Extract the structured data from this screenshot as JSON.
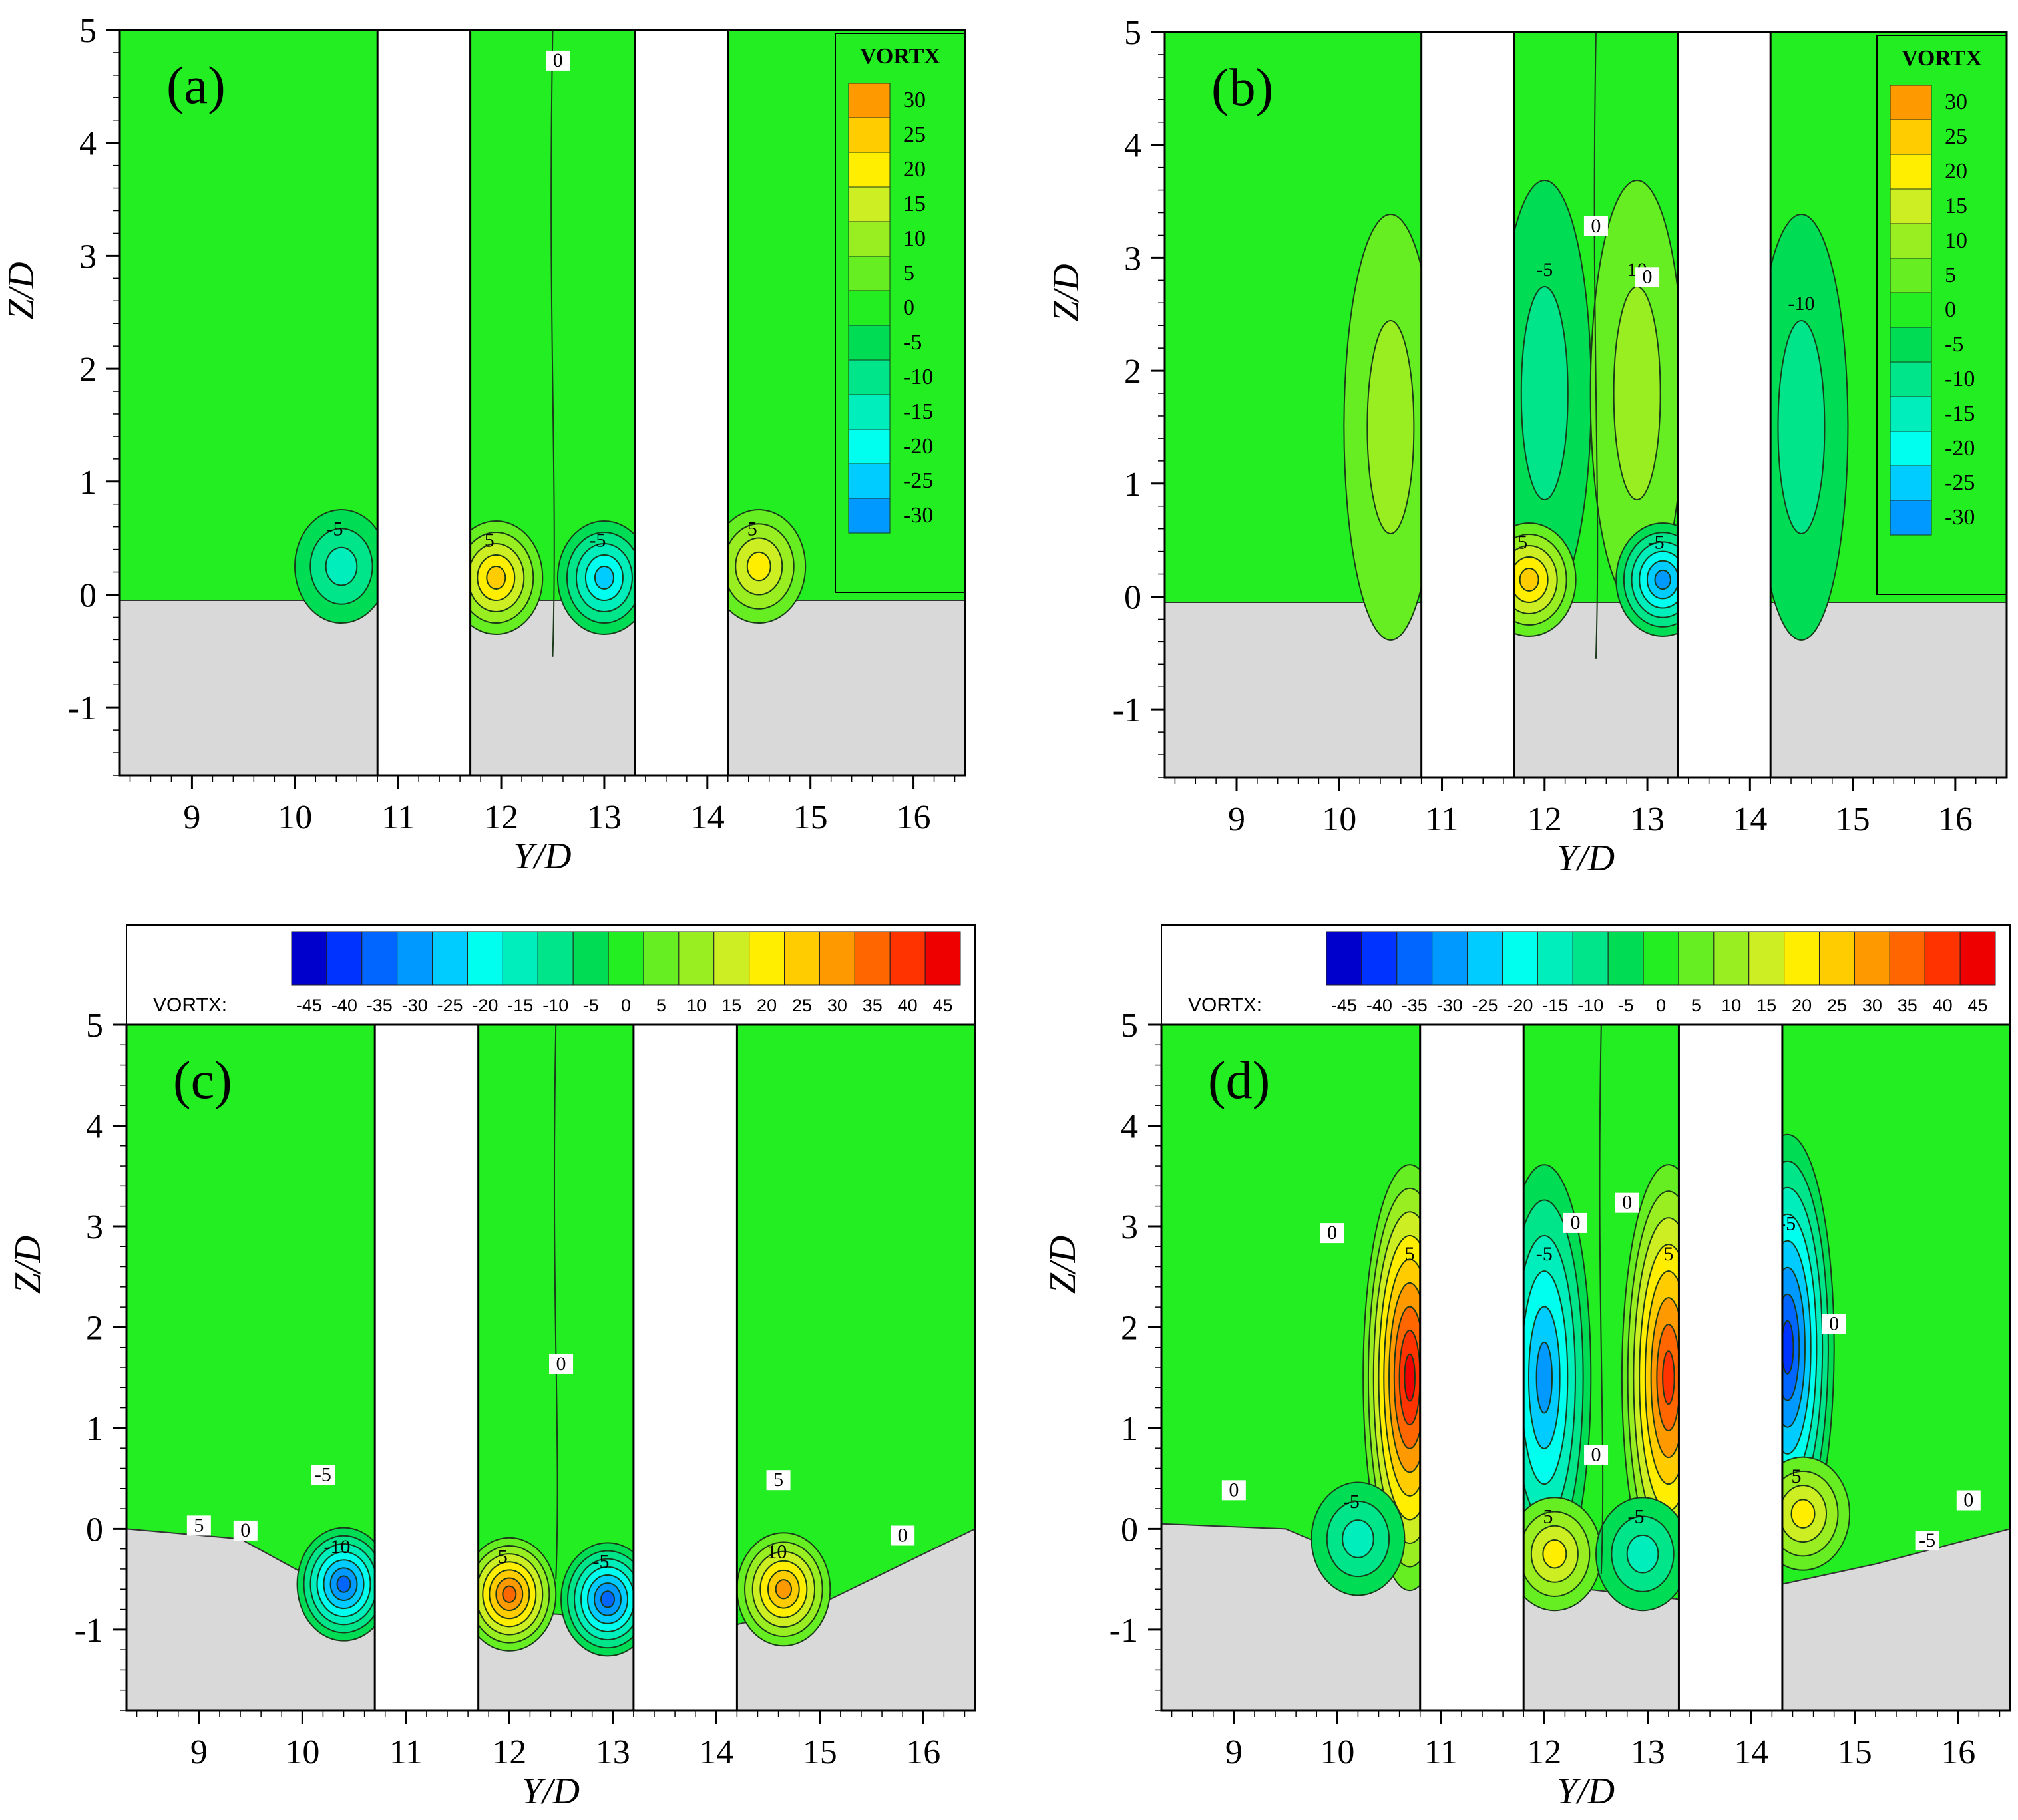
{
  "figure": {
    "colors": {
      "field": "#22ee22",
      "bed": "#d9d9d9",
      "pile": "#ffffff",
      "contour": "#1a3a1a"
    },
    "colormap": [
      "#0000cc",
      "#0033ff",
      "#0066ff",
      "#0099ff",
      "#00ccff",
      "#00ffee",
      "#00eebb",
      "#00e48a",
      "#00dd55",
      "#22ee22",
      "#66ee22",
      "#99ee22",
      "#ccee22",
      "#ffee00",
      "#ffcc00",
      "#ff9900",
      "#ff6600",
      "#ff3300",
      "#ee0000"
    ]
  },
  "chart_data": [
    {
      "panel_label": "(a)",
      "type": "contour",
      "xlabel": "Y/D",
      "ylabel": "Z/D",
      "xlim": [
        8.3,
        16.5
      ],
      "ylim": [
        -1.6,
        5.0
      ],
      "xticks": [
        "9",
        "10",
        "11",
        "12",
        "13",
        "14",
        "15",
        "16"
      ],
      "yticks": [
        "-1",
        "0",
        "1",
        "2",
        "3",
        "4",
        "5"
      ],
      "piles": [
        [
          10.8,
          11.7
        ],
        [
          13.3,
          14.2
        ]
      ],
      "bed_profile": [
        [
          8.3,
          -0.05
        ],
        [
          16.5,
          -0.05
        ]
      ],
      "legend": {
        "title": "VORTX",
        "orientation": "vertical",
        "levels": [
          "30",
          "25",
          "20",
          "15",
          "10",
          "5",
          "0",
          "-5",
          "-10",
          "-15",
          "-20",
          "-25",
          "-30"
        ]
      },
      "blobs": [
        {
          "y": 10.45,
          "z": 0.25,
          "value": -15,
          "label": "-5"
        },
        {
          "y": 11.95,
          "z": 0.15,
          "value": 25,
          "label": "5"
        },
        {
          "y": 13.0,
          "z": 0.15,
          "value": -25,
          "label": "-5"
        },
        {
          "y": 14.5,
          "z": 0.25,
          "value": 18,
          "label": "5"
        }
      ],
      "contour_labels": [
        {
          "text": "0",
          "y": 12.55,
          "z": 4.7
        }
      ]
    },
    {
      "panel_label": "(b)",
      "type": "contour",
      "xlabel": "Y/D",
      "ylabel": "Z/D",
      "xlim": [
        8.3,
        16.5
      ],
      "ylim": [
        -1.6,
        5.0
      ],
      "xticks": [
        "9",
        "10",
        "11",
        "12",
        "13",
        "14",
        "15",
        "16"
      ],
      "yticks": [
        "-1",
        "0",
        "1",
        "2",
        "3",
        "4",
        "5"
      ],
      "piles": [
        [
          10.8,
          11.7
        ],
        [
          13.3,
          14.2
        ]
      ],
      "bed_profile": [
        [
          8.3,
          -0.05
        ],
        [
          16.5,
          -0.05
        ]
      ],
      "legend": {
        "title": "VORTX",
        "orientation": "vertical",
        "levels": [
          "30",
          "25",
          "20",
          "15",
          "10",
          "5",
          "0",
          "-5",
          "-10",
          "-15",
          "-20",
          "-25",
          "-30"
        ]
      },
      "blobs": [
        {
          "y": 10.5,
          "z": 1.5,
          "value": 8,
          "label": ""
        },
        {
          "y": 12.0,
          "z": 1.8,
          "value": -4,
          "label": "-5"
        },
        {
          "y": 12.9,
          "z": 1.8,
          "value": 8,
          "label": "10"
        },
        {
          "y": 14.5,
          "z": 1.5,
          "value": -6,
          "label": "-10"
        },
        {
          "y": 11.85,
          "z": 0.15,
          "value": 25,
          "label": "5"
        },
        {
          "y": 13.15,
          "z": 0.15,
          "value": -30,
          "label": "-5"
        }
      ],
      "contour_labels": [
        {
          "text": "0",
          "y": 12.5,
          "z": 3.25
        },
        {
          "text": "0",
          "y": 13.0,
          "z": 2.8
        }
      ]
    },
    {
      "panel_label": "(c)",
      "type": "contour",
      "xlabel": "Y/D",
      "ylabel": "Z/D",
      "xlim": [
        8.3,
        16.5
      ],
      "ylim": [
        -1.8,
        5.0
      ],
      "xticks": [
        "9",
        "10",
        "11",
        "12",
        "13",
        "14",
        "15",
        "16"
      ],
      "yticks": [
        "-1",
        "0",
        "1",
        "2",
        "3",
        "4",
        "5"
      ],
      "piles": [
        [
          10.7,
          11.7
        ],
        [
          13.2,
          14.2
        ]
      ],
      "bed_profile": [
        [
          8.3,
          0.0
        ],
        [
          9.4,
          -0.1
        ],
        [
          10.2,
          -0.55
        ],
        [
          10.7,
          -0.75
        ],
        [
          11.7,
          -0.8
        ],
        [
          12.5,
          -0.85
        ],
        [
          13.2,
          -0.95
        ],
        [
          14.2,
          -0.95
        ],
        [
          15.0,
          -0.75
        ],
        [
          16.5,
          0.0
        ]
      ],
      "legend": {
        "title": "VORTX:",
        "orientation": "horizontal",
        "levels": [
          "-45",
          "-40",
          "-35",
          "-30",
          "-25",
          "-20",
          "-15",
          "-10",
          "-5",
          "0",
          "5",
          "10",
          "15",
          "20",
          "25",
          "30",
          "35",
          "40",
          "45"
        ]
      },
      "blobs": [
        {
          "y": 10.4,
          "z": -0.55,
          "value": -35,
          "label": "-10"
        },
        {
          "y": 12.0,
          "z": -0.65,
          "value": 35,
          "label": "5"
        },
        {
          "y": 12.95,
          "z": -0.7,
          "value": -35,
          "label": "-5"
        },
        {
          "y": 14.65,
          "z": -0.6,
          "value": 30,
          "label": "10"
        }
      ],
      "contour_labels": [
        {
          "text": "0",
          "y": 12.5,
          "z": 1.6
        },
        {
          "text": "-5",
          "y": 10.2,
          "z": 0.5
        },
        {
          "text": "5",
          "y": 9.0,
          "z": 0.0
        },
        {
          "text": "0",
          "y": 9.45,
          "z": -0.05
        },
        {
          "text": "5",
          "y": 14.6,
          "z": 0.45
        },
        {
          "text": "0",
          "y": 15.8,
          "z": -0.1
        }
      ]
    },
    {
      "panel_label": "(d)",
      "type": "contour",
      "xlabel": "Y/D",
      "ylabel": "Z/D",
      "xlim": [
        8.3,
        16.5
      ],
      "ylim": [
        -1.8,
        5.0
      ],
      "xticks": [
        "9",
        "10",
        "11",
        "12",
        "13",
        "14",
        "15",
        "16"
      ],
      "yticks": [
        "-1",
        "0",
        "1",
        "2",
        "3",
        "4",
        "5"
      ],
      "piles": [
        [
          10.8,
          11.8
        ],
        [
          13.3,
          14.3
        ]
      ],
      "bed_profile": [
        [
          8.3,
          0.05
        ],
        [
          9.5,
          0.0
        ],
        [
          10.3,
          -0.35
        ],
        [
          10.8,
          -0.45
        ],
        [
          11.8,
          -0.65
        ],
        [
          12.4,
          -0.6
        ],
        [
          13.3,
          -0.7
        ],
        [
          14.3,
          -0.55
        ],
        [
          15.2,
          -0.35
        ],
        [
          16.5,
          0.0
        ]
      ],
      "legend": {
        "title": "VORTX:",
        "orientation": "horizontal",
        "levels": [
          "-45",
          "-40",
          "-35",
          "-30",
          "-25",
          "-20",
          "-15",
          "-10",
          "-5",
          "0",
          "5",
          "10",
          "15",
          "20",
          "25",
          "30",
          "35",
          "40",
          "45"
        ]
      },
      "blobs": [
        {
          "y": 10.7,
          "z": 1.5,
          "value": 45,
          "label": "5"
        },
        {
          "y": 12.0,
          "z": 1.5,
          "value": -28,
          "label": "-5"
        },
        {
          "y": 13.2,
          "z": 1.5,
          "value": 38,
          "label": "5"
        },
        {
          "y": 14.35,
          "z": 1.8,
          "value": -40,
          "label": "-5"
        },
        {
          "y": 10.2,
          "z": -0.1,
          "value": -15,
          "label": "-5"
        },
        {
          "y": 12.1,
          "z": -0.25,
          "value": 20,
          "label": "5"
        },
        {
          "y": 12.95,
          "z": -0.25,
          "value": -15,
          "label": "-5"
        },
        {
          "y": 14.5,
          "z": 0.15,
          "value": 20,
          "label": "5"
        }
      ],
      "contour_labels": [
        {
          "text": "0",
          "y": 9.95,
          "z": 2.9
        },
        {
          "text": "0",
          "y": 12.3,
          "z": 3.0
        },
        {
          "text": "0",
          "y": 12.8,
          "z": 3.2
        },
        {
          "text": "0",
          "y": 14.8,
          "z": 2.0
        },
        {
          "text": "0",
          "y": 12.5,
          "z": 0.7
        },
        {
          "text": "0",
          "y": 9.0,
          "z": 0.35
        },
        {
          "text": "-5",
          "y": 15.7,
          "z": -0.15
        },
        {
          "text": "0",
          "y": 16.1,
          "z": 0.25
        }
      ]
    }
  ]
}
